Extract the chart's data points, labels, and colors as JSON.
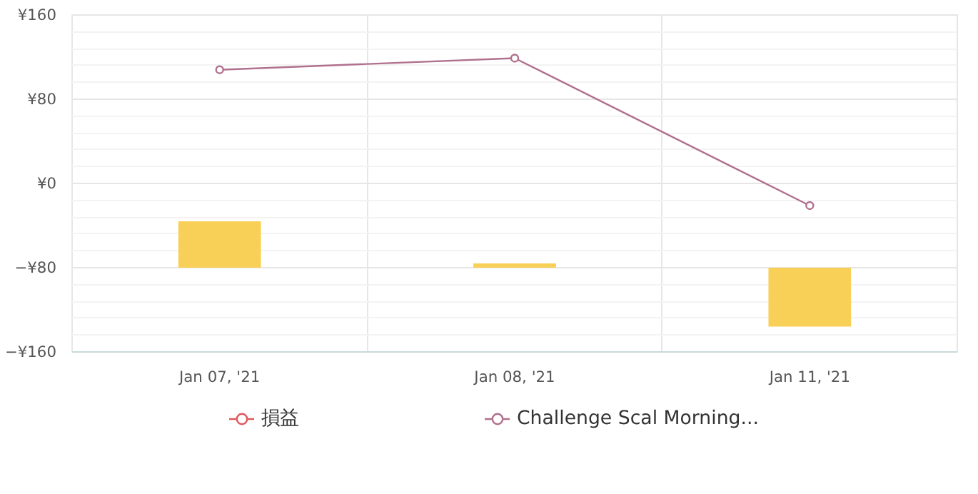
{
  "chart_data": {
    "type": "bar",
    "categories": [
      "Jan 07, '21",
      "Jan 08, '21",
      "Jan 11, '21"
    ],
    "series": [
      {
        "color": "#f9d057",
        "values": [
          44,
          4,
          -56
        ],
        "base": [
          -80,
          -80,
          -80
        ]
      },
      {
        "type": "line",
        "name": "損益",
        "color": "#e0585b",
        "values": [
          null,
          null,
          null
        ],
        "marker": "circle"
      },
      {
        "type": "line",
        "name": "Challenge Scal Morning...",
        "color": "#b0708e",
        "values": [
          108,
          119,
          -21
        ],
        "marker": "circle"
      }
    ],
    "ylim": [
      -160,
      160
    ],
    "yticks": [
      {
        "value": -160,
        "label": "−¥160"
      },
      {
        "value": -80,
        "label": "−¥80"
      },
      {
        "value": 0,
        "label": "¥0"
      },
      {
        "value": 80,
        "label": "¥80"
      },
      {
        "value": 160,
        "label": "¥160"
      }
    ],
    "grid": true,
    "legend": "bottom"
  }
}
